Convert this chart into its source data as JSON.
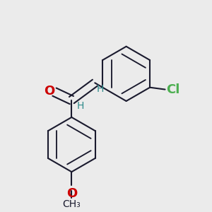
{
  "bg_color": "#ebebeb",
  "bond_color": "#1a1a2e",
  "bond_width": 1.5,
  "dbo": 0.018,
  "O_color": "#cc0000",
  "Cl_color": "#4caf50",
  "H_color": "#2e8b8b",
  "C_color": "#1a1a2e",
  "font_size_atom": 13,
  "font_size_H": 10,
  "font_size_OCH3": 11,
  "figsize": [
    3.0,
    3.0
  ],
  "dpi": 100,
  "xlim": [
    0.0,
    1.0
  ],
  "ylim": [
    0.0,
    1.0
  ]
}
